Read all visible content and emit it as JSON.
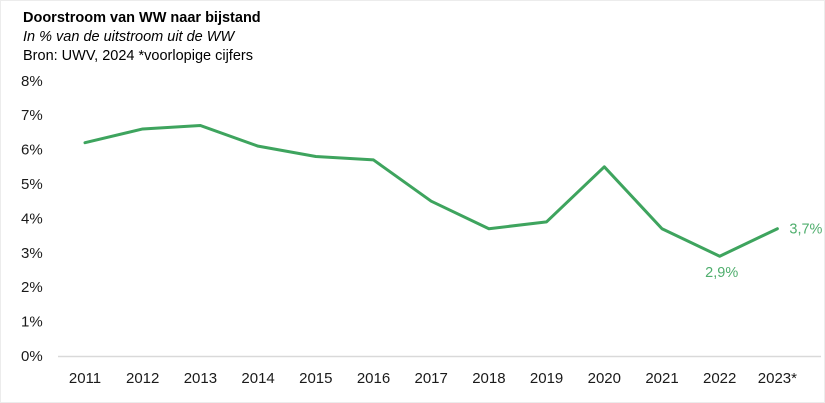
{
  "header": {
    "title": "Doorstroom van WW naar bijstand",
    "subtitle": "In % van de uitstroom uit de WW",
    "source": "Bron: UWV, 2024 *voorlopige cijfers"
  },
  "chart_data": {
    "type": "line",
    "title": "Doorstroom van WW naar bijstand",
    "subtitle": "In % van de uitstroom uit de WW",
    "source": "Bron: UWV, 2024 *voorlopige cijfers",
    "categories": [
      "2011",
      "2012",
      "2013",
      "2014",
      "2015",
      "2016",
      "2017",
      "2018",
      "2019",
      "2020",
      "2021",
      "2022",
      "2023*"
    ],
    "series": [
      {
        "name": "Doorstroom van WW naar bijstand (% van uitstroom WW)",
        "values": [
          6.2,
          6.6,
          6.7,
          6.1,
          5.8,
          5.7,
          4.5,
          3.7,
          3.9,
          5.5,
          3.7,
          2.9,
          3.7
        ]
      }
    ],
    "ylim": [
      0,
      8
    ],
    "ytick_step": 1,
    "ytick_suffix": "%",
    "grid": false,
    "legend": false,
    "annotations": [
      {
        "category": "2022",
        "text": "2,9%",
        "position": "below"
      },
      {
        "category": "2023*",
        "text": "3,7%",
        "position": "right"
      }
    ],
    "colors": {
      "line": "#3ea45e",
      "annotation": "#4fae6d",
      "axis_line": "#d9d9d9",
      "axis_text": "#1a1a1a"
    }
  }
}
